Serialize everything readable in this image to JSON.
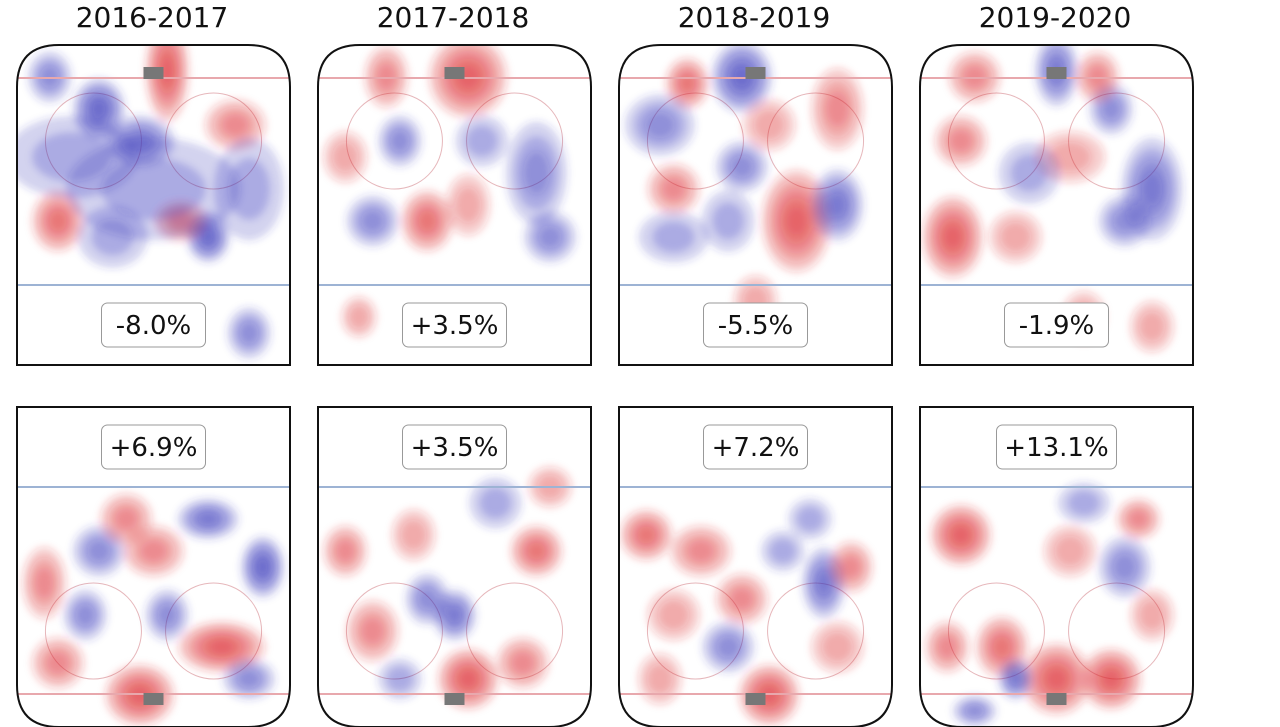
{
  "chart_data": {
    "type": "heatmap",
    "description_free": true,
    "seasons": [
      "2016-2017",
      "2017-2018",
      "2018-2019",
      "2019-2020"
    ],
    "colors": {
      "positive": "#d9262b",
      "negative": "#2f2fb8",
      "rink_line": "#9db3d4",
      "goal_line": "#e8a8ad",
      "border": "#111111",
      "net": "#777777"
    },
    "panels": [
      {
        "season": "2016-2017",
        "zone": "top",
        "label": "-8.0%",
        "value": -8.0,
        "blobs": [
          [
            0.55,
            0.08,
            0.05,
            0.1,
            1
          ],
          [
            0.3,
            0.2,
            0.06,
            0.06,
            -1
          ],
          [
            0.12,
            0.1,
            0.05,
            0.05,
            -0.6
          ],
          [
            0.45,
            0.3,
            0.08,
            0.05,
            -0.8
          ],
          [
            0.8,
            0.25,
            0.07,
            0.05,
            0.5
          ],
          [
            0.15,
            0.55,
            0.06,
            0.06,
            0.7
          ],
          [
            0.7,
            0.6,
            0.05,
            0.05,
            -0.9
          ],
          [
            0.6,
            0.55,
            0.06,
            0.04,
            0.6
          ],
          [
            0.5,
            0.45,
            0.2,
            0.1,
            -0.4
          ],
          [
            0.2,
            0.35,
            0.15,
            0.08,
            -0.35
          ],
          [
            0.85,
            0.45,
            0.08,
            0.1,
            -0.3
          ],
          [
            0.35,
            0.6,
            0.08,
            0.06,
            -0.3
          ],
          [
            0.85,
            0.9,
            0.05,
            0.05,
            -0.5
          ]
        ]
      },
      {
        "season": "2017-2018",
        "zone": "top",
        "label": "+3.5%",
        "value": 3.5,
        "blobs": [
          [
            0.55,
            0.1,
            0.09,
            0.08,
            1
          ],
          [
            0.25,
            0.1,
            0.05,
            0.06,
            0.6
          ],
          [
            0.1,
            0.35,
            0.05,
            0.05,
            0.4
          ],
          [
            0.3,
            0.3,
            0.05,
            0.05,
            -0.5
          ],
          [
            0.8,
            0.4,
            0.07,
            0.1,
            -0.6
          ],
          [
            0.4,
            0.55,
            0.06,
            0.06,
            0.7
          ],
          [
            0.2,
            0.55,
            0.06,
            0.05,
            -0.6
          ],
          [
            0.6,
            0.3,
            0.06,
            0.05,
            -0.4
          ],
          [
            0.55,
            0.5,
            0.05,
            0.06,
            0.4
          ],
          [
            0.85,
            0.6,
            0.06,
            0.05,
            -0.5
          ],
          [
            0.15,
            0.85,
            0.04,
            0.04,
            0.3
          ]
        ]
      },
      {
        "season": "2018-2019",
        "zone": "top",
        "label": "-5.5%",
        "value": -5.5,
        "blobs": [
          [
            0.45,
            0.1,
            0.07,
            0.07,
            -1
          ],
          [
            0.25,
            0.12,
            0.05,
            0.05,
            0.8
          ],
          [
            0.15,
            0.25,
            0.08,
            0.06,
            -0.6
          ],
          [
            0.65,
            0.55,
            0.08,
            0.1,
            0.9
          ],
          [
            0.8,
            0.2,
            0.06,
            0.08,
            0.5
          ],
          [
            0.45,
            0.38,
            0.06,
            0.05,
            -0.6
          ],
          [
            0.8,
            0.5,
            0.06,
            0.07,
            -0.7
          ],
          [
            0.2,
            0.45,
            0.06,
            0.05,
            0.5
          ],
          [
            0.4,
            0.55,
            0.06,
            0.06,
            -0.4
          ],
          [
            0.55,
            0.25,
            0.06,
            0.05,
            0.4
          ],
          [
            0.2,
            0.6,
            0.08,
            0.05,
            -0.3
          ],
          [
            0.5,
            0.8,
            0.05,
            0.05,
            0.3
          ]
        ]
      },
      {
        "season": "2019-2020",
        "zone": "top",
        "label": "-1.9%",
        "value": -1.9,
        "blobs": [
          [
            0.12,
            0.6,
            0.07,
            0.08,
            1
          ],
          [
            0.5,
            0.08,
            0.05,
            0.07,
            -0.8
          ],
          [
            0.2,
            0.1,
            0.06,
            0.05,
            0.5
          ],
          [
            0.15,
            0.3,
            0.06,
            0.05,
            0.6
          ],
          [
            0.7,
            0.2,
            0.05,
            0.05,
            -0.6
          ],
          [
            0.65,
            0.1,
            0.05,
            0.05,
            0.5
          ],
          [
            0.85,
            0.45,
            0.07,
            0.1,
            -0.8
          ],
          [
            0.55,
            0.35,
            0.08,
            0.05,
            0.4
          ],
          [
            0.4,
            0.4,
            0.07,
            0.06,
            -0.4
          ],
          [
            0.35,
            0.6,
            0.06,
            0.05,
            0.3
          ],
          [
            0.75,
            0.55,
            0.06,
            0.05,
            -0.5
          ],
          [
            0.6,
            0.85,
            0.05,
            0.05,
            0.3
          ],
          [
            0.85,
            0.88,
            0.05,
            0.05,
            0.4
          ]
        ]
      },
      {
        "season": "2016-2017",
        "zone": "bottom",
        "label": "+6.9%",
        "value": 6.9,
        "blobs": [
          [
            0.45,
            0.9,
            0.08,
            0.06,
            1
          ],
          [
            0.75,
            0.75,
            0.1,
            0.05,
            0.9
          ],
          [
            0.9,
            0.5,
            0.05,
            0.06,
            -1
          ],
          [
            0.3,
            0.45,
            0.06,
            0.05,
            -0.6
          ],
          [
            0.5,
            0.45,
            0.07,
            0.05,
            0.6
          ],
          [
            0.1,
            0.55,
            0.05,
            0.07,
            0.6
          ],
          [
            0.25,
            0.65,
            0.05,
            0.05,
            -0.6
          ],
          [
            0.7,
            0.35,
            0.07,
            0.04,
            -0.7
          ],
          [
            0.55,
            0.65,
            0.05,
            0.05,
            -0.6
          ],
          [
            0.15,
            0.8,
            0.06,
            0.05,
            0.5
          ],
          [
            0.85,
            0.85,
            0.06,
            0.04,
            -0.5
          ],
          [
            0.4,
            0.35,
            0.06,
            0.05,
            0.5
          ]
        ]
      },
      {
        "season": "2017-2018",
        "zone": "bottom",
        "label": "+3.5%",
        "value": 3.5,
        "blobs": [
          [
            0.55,
            0.85,
            0.07,
            0.06,
            0.9
          ],
          [
            0.8,
            0.45,
            0.06,
            0.05,
            0.7
          ],
          [
            0.1,
            0.45,
            0.05,
            0.05,
            0.6
          ],
          [
            0.5,
            0.65,
            0.05,
            0.05,
            -0.8
          ],
          [
            0.2,
            0.7,
            0.06,
            0.06,
            0.5
          ],
          [
            0.4,
            0.6,
            0.05,
            0.05,
            -0.5
          ],
          [
            0.65,
            0.3,
            0.06,
            0.05,
            -0.4
          ],
          [
            0.35,
            0.4,
            0.05,
            0.05,
            0.4
          ],
          [
            0.75,
            0.8,
            0.06,
            0.05,
            0.5
          ],
          [
            0.3,
            0.85,
            0.05,
            0.04,
            -0.3
          ],
          [
            0.85,
            0.25,
            0.05,
            0.04,
            0.4
          ]
        ]
      },
      {
        "season": "2018-2019",
        "zone": "bottom",
        "label": "+7.2%",
        "value": 7.2,
        "blobs": [
          [
            0.55,
            0.9,
            0.07,
            0.06,
            1
          ],
          [
            0.1,
            0.4,
            0.06,
            0.05,
            0.8
          ],
          [
            0.3,
            0.45,
            0.07,
            0.05,
            0.6
          ],
          [
            0.75,
            0.55,
            0.05,
            0.07,
            -0.8
          ],
          [
            0.45,
            0.6,
            0.06,
            0.05,
            0.5
          ],
          [
            0.85,
            0.5,
            0.05,
            0.05,
            0.5
          ],
          [
            0.4,
            0.75,
            0.06,
            0.05,
            -0.5
          ],
          [
            0.7,
            0.35,
            0.05,
            0.04,
            -0.4
          ],
          [
            0.2,
            0.65,
            0.06,
            0.05,
            0.4
          ],
          [
            0.8,
            0.75,
            0.06,
            0.05,
            0.4
          ],
          [
            0.6,
            0.45,
            0.05,
            0.04,
            -0.3
          ],
          [
            0.15,
            0.85,
            0.05,
            0.05,
            0.3
          ]
        ]
      },
      {
        "season": "2019-2020",
        "zone": "bottom",
        "label": "+13.1%",
        "value": 13.1,
        "blobs": [
          [
            0.5,
            0.85,
            0.08,
            0.07,
            1
          ],
          [
            0.7,
            0.85,
            0.07,
            0.06,
            0.9
          ],
          [
            0.15,
            0.4,
            0.07,
            0.06,
            0.9
          ],
          [
            0.3,
            0.75,
            0.06,
            0.06,
            0.7
          ],
          [
            0.35,
            0.85,
            0.04,
            0.04,
            -0.8
          ],
          [
            0.75,
            0.5,
            0.06,
            0.06,
            -0.6
          ],
          [
            0.8,
            0.35,
            0.05,
            0.04,
            0.6
          ],
          [
            0.55,
            0.45,
            0.06,
            0.05,
            0.4
          ],
          [
            0.1,
            0.75,
            0.05,
            0.05,
            0.5
          ],
          [
            0.6,
            0.3,
            0.06,
            0.04,
            -0.4
          ],
          [
            0.85,
            0.65,
            0.05,
            0.05,
            0.4
          ],
          [
            0.2,
            0.95,
            0.05,
            0.03,
            -0.5
          ]
        ]
      }
    ]
  }
}
